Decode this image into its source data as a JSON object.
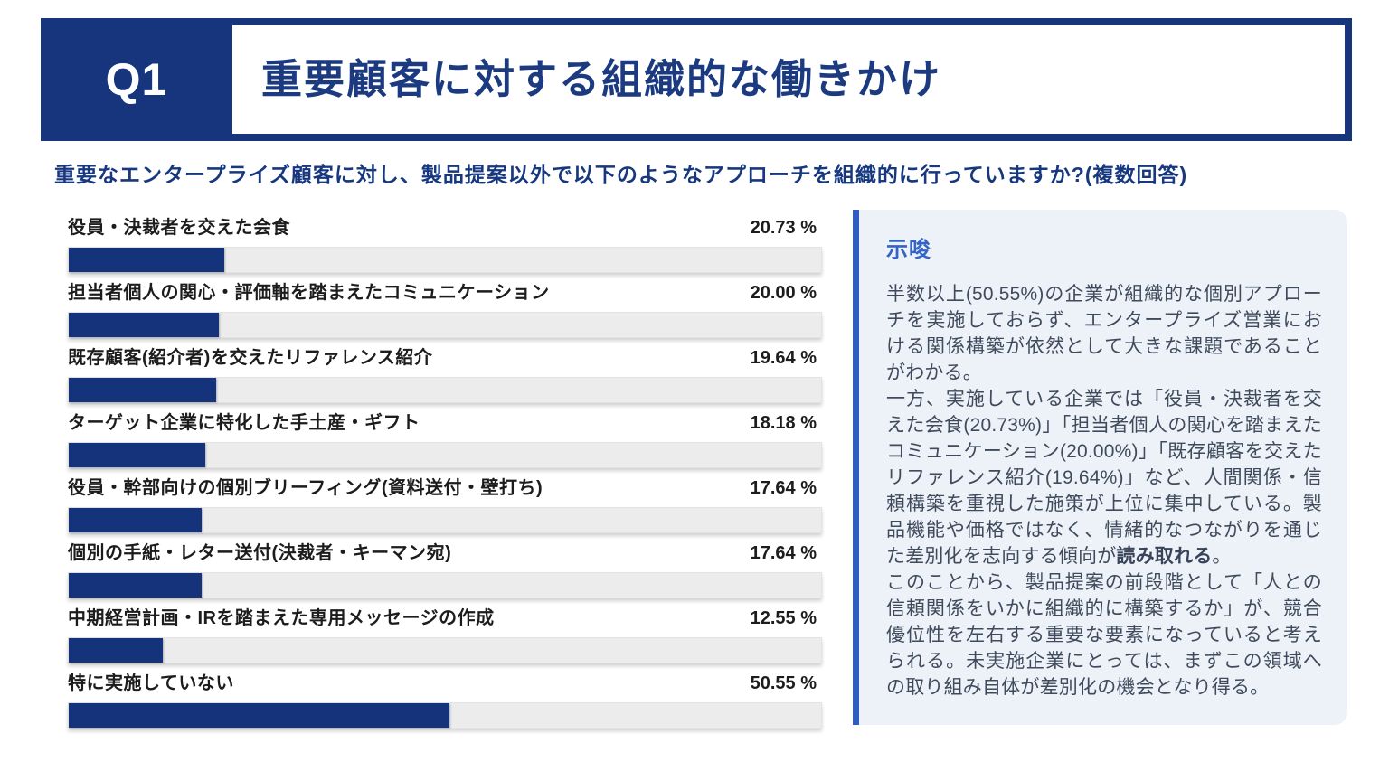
{
  "header": {
    "question_number": "Q1",
    "title": "重要顧客に対する組織的な働きかけ"
  },
  "question": "重要なエンタープライズ顧客に対し、製品提案以外で以下のようなアプローチを組織的に行っていますか?(複数回答)",
  "chart_data": {
    "type": "bar",
    "orientation": "horizontal",
    "xlim": [
      0,
      100
    ],
    "grid": false,
    "bar_color": "#14337b",
    "track_color": "#ececec",
    "categories": [
      "役員・決裁者を交えた会食",
      "担当者個人の関心・評価軸を踏まえたコミュニケーション",
      "既存顧客(紹介者)を交えたリファレンス紹介",
      "ターゲット企業に特化した手土産・ギフト",
      "役員・幹部向けの個別ブリーフィング(資料送付・壁打ち)",
      "個別の手紙・レター送付(決裁者・キーマン宛)",
      "中期経営計画・IRを踏まえた専用メッセージの作成",
      "特に実施していない"
    ],
    "values": [
      20.73,
      20.0,
      19.64,
      18.18,
      17.64,
      17.64,
      12.55,
      50.55
    ],
    "value_labels": [
      "20.73 %",
      "20.00 %",
      "19.64 %",
      "18.18 %",
      "17.64 %",
      "17.64 %",
      "12.55 %",
      "50.55 %"
    ]
  },
  "insight": {
    "title": "示唆",
    "accent_color": "#2e5cc7",
    "title_color": "#3565c4",
    "background_color": "#edf1f8",
    "p1": "半数以上(50.55%)の企業が組織的な個別アプローチを実施しておらず、エンタープライズ営業における関係構築が依然として大きな課題であることがわかる。",
    "p2_normal": "一方、実施している企業では「役員・決裁者を交えた会食(20.73%)」「担当者個人の関心を踏まえたコミュニケーション(20.00%)」「既存顧客を交えたリファレンス紹介(19.64%)」など、人間関係・信頼構築を重視した施策が上位に集中している。製品機能や価格ではなく、情緒的なつながりを通じた差別化を志向する傾向が",
    "p2_bold": "読み取れる",
    "p2_tail": "。",
    "p3": "このことから、製品提案の前段階として「人との信頼関係をいかに組織的に構築するか」が、競合優位性を左右する重要な要素になっていると考えられる。未実施企業にとっては、まずこの領域への取り組み自体が差別化の機会となり得る。"
  },
  "colors": {
    "header_navy": "#17357d",
    "title_text": "#1b3a80",
    "question_text": "#17387f",
    "label_text": "#1c1c1c"
  }
}
